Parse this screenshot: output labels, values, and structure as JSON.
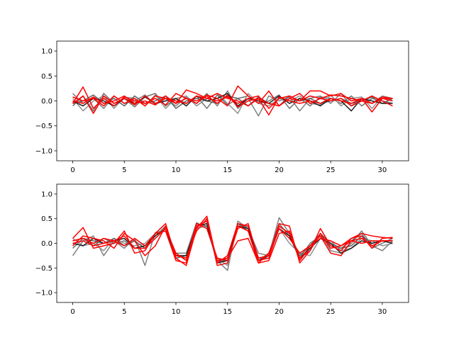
{
  "chart_data": [
    {
      "type": "line",
      "xlim": [
        -1.55,
        32.55
      ],
      "ylim": [
        -1.2,
        1.2
      ],
      "xticks": [
        0,
        5,
        10,
        15,
        20,
        25,
        30
      ],
      "yticks": [
        -1.0,
        -0.5,
        0.0,
        0.5,
        1.0
      ],
      "xtick_labels": [
        "0",
        "5",
        "10",
        "15",
        "20",
        "25",
        "30"
      ],
      "ytick_labels": [
        "−1.0",
        "−0.5",
        "0.0",
        "0.5",
        "1.0"
      ],
      "grid": false,
      "x": [
        0,
        1,
        2,
        3,
        4,
        5,
        6,
        7,
        8,
        9,
        10,
        11,
        12,
        13,
        14,
        15,
        16,
        17,
        18,
        19,
        20,
        21,
        22,
        23,
        24,
        25,
        26,
        27,
        28,
        29,
        30,
        31
      ],
      "series": [
        {
          "color": "#808080",
          "values": [
            0.15,
            -0.05,
            0.05,
            -0.15,
            0.1,
            -0.05,
            0.0,
            0.12,
            -0.08,
            0.05,
            -0.1,
            0.08,
            -0.05,
            0.15,
            -0.1,
            0.2,
            -0.15,
            0.05,
            -0.3,
            0.1,
            0.0,
            0.08,
            -0.2,
            0.05,
            0.1,
            -0.05,
            0.15,
            -0.1,
            0.05,
            -0.05,
            0.1,
            0.05
          ]
        },
        {
          "color": "#707070",
          "values": [
            -0.1,
            0.1,
            -0.2,
            0.15,
            -0.05,
            0.05,
            -0.12,
            0.08,
            0.15,
            -0.1,
            0.05,
            -0.05,
            0.1,
            -0.15,
            0.12,
            -0.08,
            0.05,
            0.1,
            -0.05,
            0.0,
            0.12,
            -0.15,
            0.05,
            -0.1,
            0.08,
            0.05,
            -0.05,
            0.1,
            -0.1,
            0.05,
            0.0,
            -0.05
          ]
        },
        {
          "color": "#909090",
          "values": [
            0.05,
            -0.2,
            0.0,
            0.1,
            -0.15,
            0.08,
            0.05,
            -0.1,
            0.12,
            -0.15,
            0.05,
            0.1,
            -0.1,
            0.05,
            0.15,
            -0.05,
            -0.25,
            0.15,
            -0.05,
            -0.1,
            0.05,
            0.0,
            0.1,
            -0.05,
            -0.08,
            0.12,
            -0.1,
            0.05,
            0.08,
            -0.15,
            0.1,
            0.0
          ]
        },
        {
          "color": "#606060",
          "values": [
            -0.05,
            0.0,
            0.12,
            -0.05,
            0.05,
            -0.1,
            0.1,
            -0.05,
            0.0,
            0.1,
            -0.15,
            0.0,
            0.05,
            0.0,
            -0.05,
            0.1,
            0.05,
            -0.1,
            0.08,
            -0.05,
            -0.1,
            0.1,
            0.0,
            0.05,
            -0.05,
            0.0,
            0.05,
            -0.05,
            0.0,
            0.08,
            -0.05,
            0.05
          ]
        },
        {
          "color": "#202020",
          "values": [
            0.0,
            -0.1,
            0.05,
            0.0,
            -0.1,
            0.05,
            -0.05,
            0.08,
            -0.05,
            0.0,
            0.05,
            -0.1,
            0.1,
            0.0,
            0.05,
            0.15,
            -0.1,
            0.05,
            0.0,
            -0.05,
            0.1,
            -0.05,
            0.05,
            0.0,
            -0.1,
            0.05,
            0.0,
            -0.2,
            0.05,
            0.0,
            -0.05,
            -0.05
          ]
        },
        {
          "color": "#ff0000",
          "values": [
            -0.05,
            0.28,
            -0.15,
            0.05,
            -0.1,
            0.08,
            0.0,
            -0.05,
            0.05,
            -0.08,
            0.15,
            0.05,
            -0.05,
            0.12,
            0.05,
            -0.1,
            0.3,
            0.1,
            -0.05,
            0.2,
            -0.1,
            0.05,
            0.0,
            0.2,
            0.2,
            0.1,
            0.15,
            0.0,
            0.05,
            -0.05,
            0.08,
            0.05
          ]
        },
        {
          "color": "#ff0000",
          "values": [
            0.08,
            0.0,
            0.05,
            -0.1,
            0.1,
            -0.05,
            0.05,
            -0.1,
            0.1,
            0.05,
            -0.05,
            0.22,
            0.15,
            0.05,
            0.0,
            0.08,
            -0.05,
            0.05,
            0.1,
            -0.15,
            0.05,
            0.1,
            0.0,
            0.1,
            0.05,
            0.12,
            0.1,
            0.05,
            0.0,
            -0.05,
            0.05,
            0.0
          ]
        },
        {
          "color": "#ff0000",
          "values": [
            -0.05,
            0.1,
            -0.25,
            0.1,
            -0.05,
            0.05,
            -0.08,
            0.1,
            -0.05,
            0.05,
            0.0,
            -0.05,
            0.1,
            0.05,
            0.15,
            0.05,
            0.0,
            -0.1,
            0.05,
            -0.28,
            0.08,
            0.0,
            -0.05,
            0.0,
            -0.05,
            0.05,
            0.0,
            -0.05,
            0.05,
            -0.22,
            0.05,
            0.05
          ]
        },
        {
          "color": "#ff0000",
          "values": [
            0.0,
            -0.05,
            0.08,
            -0.05,
            0.0,
            0.1,
            -0.05,
            0.0,
            -0.08,
            0.1,
            -0.05,
            0.05,
            0.0,
            0.1,
            -0.05,
            0.12,
            -0.12,
            0.0,
            0.05,
            -0.05,
            -0.1,
            0.05,
            0.15,
            -0.05,
            0.05,
            0.0,
            0.05,
            -0.1,
            0.0,
            0.1,
            0.0,
            -0.1
          ]
        }
      ]
    },
    {
      "type": "line",
      "xlim": [
        -1.55,
        32.55
      ],
      "ylim": [
        -1.2,
        1.2
      ],
      "xticks": [
        0,
        5,
        10,
        15,
        20,
        25,
        30
      ],
      "yticks": [
        -1.0,
        -0.5,
        0.0,
        0.5,
        1.0
      ],
      "xtick_labels": [
        "0",
        "5",
        "10",
        "15",
        "20",
        "25",
        "30"
      ],
      "ytick_labels": [
        "−1.0",
        "−0.5",
        "0.0",
        "0.5",
        "1.0"
      ],
      "grid": false,
      "x": [
        0,
        1,
        2,
        3,
        4,
        5,
        6,
        7,
        8,
        9,
        10,
        11,
        12,
        13,
        14,
        15,
        16,
        17,
        18,
        19,
        20,
        21,
        22,
        23,
        24,
        25,
        26,
        27,
        28,
        29,
        30,
        31
      ],
      "series": [
        {
          "color": "#808080",
          "values": [
            -0.25,
            0.05,
            0.15,
            -0.25,
            0.05,
            -0.1,
            0.1,
            -0.45,
            0.22,
            0.25,
            -0.2,
            -0.2,
            0.42,
            0.3,
            -0.35,
            -0.55,
            0.45,
            0.3,
            -0.2,
            -0.25,
            0.52,
            0.2,
            -0.35,
            -0.1,
            0.2,
            -0.15,
            -0.2,
            0.0,
            0.25,
            -0.05,
            -0.15,
            0.05
          ]
        },
        {
          "color": "#707070",
          "values": [
            -0.1,
            0.1,
            -0.05,
            0.1,
            0.0,
            0.05,
            -0.1,
            -0.05,
            0.15,
            0.35,
            -0.25,
            -0.3,
            0.35,
            0.4,
            -0.4,
            -0.3,
            0.4,
            0.25,
            -0.35,
            -0.2,
            0.4,
            0.15,
            -0.3,
            0.0,
            0.15,
            -0.05,
            -0.1,
            0.05,
            0.2,
            -0.1,
            0.0,
            0.1
          ]
        },
        {
          "color": "#909090",
          "values": [
            0.1,
            -0.05,
            0.0,
            -0.15,
            0.1,
            0.0,
            -0.05,
            0.0,
            0.2,
            0.3,
            -0.2,
            -0.35,
            0.3,
            0.35,
            -0.3,
            -0.45,
            0.35,
            0.35,
            -0.3,
            -0.3,
            0.3,
            0.0,
            -0.2,
            -0.25,
            0.1,
            0.05,
            -0.15,
            -0.1,
            0.1,
            0.05,
            -0.05,
            0.0
          ]
        },
        {
          "color": "#606060",
          "values": [
            0.05,
            0.1,
            0.05,
            0.0,
            0.1,
            -0.05,
            0.05,
            -0.1,
            0.2,
            0.25,
            -0.3,
            -0.25,
            0.4,
            0.35,
            -0.35,
            -0.35,
            0.4,
            0.3,
            -0.3,
            -0.25,
            0.35,
            0.2,
            -0.25,
            -0.05,
            0.2,
            0.0,
            -0.1,
            -0.05,
            0.15,
            0.0,
            0.05,
            0.05
          ]
        },
        {
          "color": "#202020",
          "values": [
            0.0,
            -0.05,
            0.1,
            0.0,
            0.05,
            0.1,
            -0.1,
            -0.05,
            0.15,
            0.3,
            -0.25,
            -0.25,
            0.35,
            0.4,
            -0.4,
            -0.35,
            0.35,
            0.3,
            -0.35,
            -0.25,
            0.3,
            0.15,
            -0.3,
            -0.1,
            0.1,
            0.0,
            -0.2,
            -0.1,
            0.05,
            0.0,
            0.05,
            0.0
          ]
        },
        {
          "color": "#ff0000",
          "values": [
            0.1,
            0.32,
            -0.1,
            -0.05,
            0.0,
            0.25,
            -0.2,
            -0.15,
            0.2,
            0.4,
            -0.3,
            -0.45,
            0.3,
            0.55,
            -0.4,
            -0.25,
            0.4,
            0.35,
            -0.3,
            -0.25,
            0.4,
            0.35,
            -0.4,
            -0.15,
            0.3,
            -0.05,
            -0.15,
            0.1,
            0.15,
            -0.1,
            0.1,
            0.12
          ]
        },
        {
          "color": "#ff0000",
          "values": [
            -0.05,
            0.15,
            0.1,
            0.05,
            -0.1,
            0.2,
            0.05,
            -0.25,
            -0.05,
            0.35,
            -0.25,
            -0.3,
            0.25,
            0.5,
            -0.45,
            -0.4,
            0.35,
            0.25,
            -0.4,
            -0.35,
            0.2,
            0.25,
            -0.35,
            -0.05,
            0.15,
            -0.2,
            -0.25,
            0.05,
            0.0,
            0.05,
            0.05,
            0.05
          ]
        },
        {
          "color": "#ff0000",
          "values": [
            0.05,
            0.1,
            0.0,
            0.1,
            0.05,
            -0.05,
            0.1,
            -0.05,
            0.2,
            0.25,
            -0.35,
            -0.4,
            0.35,
            0.45,
            -0.35,
            -0.3,
            0.05,
            0.1,
            -0.4,
            -0.2,
            0.3,
            0.1,
            -0.2,
            -0.05,
            0.1,
            0.05,
            -0.05,
            0.1,
            0.2,
            0.15,
            0.12,
            0.1
          ]
        },
        {
          "color": "#ff0000",
          "values": [
            0.0,
            0.05,
            -0.05,
            0.0,
            0.05,
            0.15,
            -0.1,
            -0.1,
            0.1,
            0.3,
            -0.2,
            -0.35,
            0.4,
            0.3,
            -0.3,
            -0.35,
            0.3,
            0.4,
            -0.35,
            -0.3,
            0.35,
            0.2,
            -0.3,
            -0.15,
            0.2,
            -0.1,
            -0.05,
            0.05,
            0.1,
            -0.05,
            0.05,
            0.05
          ]
        }
      ]
    }
  ]
}
